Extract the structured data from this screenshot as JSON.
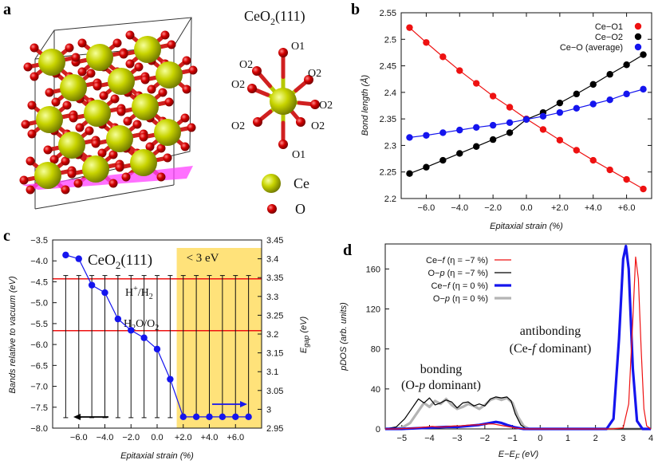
{
  "panel_labels": {
    "a": "a",
    "b": "b",
    "c": "c",
    "d": "d"
  },
  "structure": {
    "title": "CeO",
    "title_sub": "2",
    "title_paren": "(111)",
    "site_labels": {
      "o1_top": "O1",
      "o2_ul": "O2",
      "o2_l": "O2",
      "o2_r": "O2",
      "o2_rr": "O2",
      "o2_bl": "O2",
      "o2_br": "O2",
      "o1_bot": "O1"
    },
    "legend_ce": "Ce",
    "legend_o": "O",
    "colors": {
      "ce": "#c8d400",
      "o": "#d40000",
      "bond_ce": "#b6c800",
      "bond_o": "#d02020",
      "plane": "#ff40ff"
    }
  },
  "chart_data": [
    {
      "id": "b",
      "type": "line",
      "title": "",
      "xlabel": "Epitaxial strain (%)",
      "ylabel": "Bond length (Å)",
      "xlim": [
        -7.5,
        7.5
      ],
      "ylim": [
        2.2,
        2.55
      ],
      "xticks": [
        -6,
        -4,
        -2,
        0,
        2,
        4,
        6
      ],
      "xtick_labels": [
        "−6.0",
        "−4.0",
        "−2.0",
        "0.0",
        "+2.0",
        "+4.0",
        "+6.0"
      ],
      "yticks": [
        2.2,
        2.25,
        2.3,
        2.35,
        2.4,
        2.45,
        2.5,
        2.55
      ],
      "ytick_labels": [
        "2.2",
        "2.25",
        "2.3",
        "2.35",
        "2.4",
        "2.45",
        "2.5",
        "2.55"
      ],
      "x": [
        -7,
        -6,
        -5,
        -4,
        -3,
        -2,
        -1,
        0,
        1,
        2,
        3,
        4,
        5,
        6,
        7
      ],
      "series": [
        {
          "name": "Ce−O1",
          "color": "#ee1111",
          "values": [
            2.522,
            2.494,
            2.467,
            2.441,
            2.417,
            2.393,
            2.372,
            2.35,
            2.33,
            2.31,
            2.291,
            2.272,
            2.254,
            2.236,
            2.218
          ]
        },
        {
          "name": "Ce−O2",
          "color": "#000000",
          "values": [
            2.247,
            2.259,
            2.272,
            2.285,
            2.298,
            2.311,
            2.324,
            2.349,
            2.362,
            2.38,
            2.397,
            2.415,
            2.434,
            2.452,
            2.471
          ]
        },
        {
          "name": "Ce−O (average)",
          "color": "#1515ee",
          "values": [
            2.315,
            2.319,
            2.324,
            2.329,
            2.334,
            2.338,
            2.343,
            2.349,
            2.355,
            2.362,
            2.37,
            2.378,
            2.386,
            2.397,
            2.406
          ]
        }
      ],
      "legend_position": "top-right"
    },
    {
      "id": "c",
      "type": "line",
      "inset_title": "CeO",
      "inset_title_sub": "2",
      "inset_title_paren": "(111)",
      "xlabel": "Epitaxial strain (%)",
      "ylabel": "Bands relative to vacuum (eV)",
      "ylabel_right": "E",
      "ylabel_right_sub": "gap",
      "ylabel_right_unit": " (eV)",
      "xlim": [
        -8,
        8
      ],
      "ylim": [
        -8.0,
        -3.5
      ],
      "ylim_right": [
        2.95,
        3.45
      ],
      "xticks": [
        -6,
        -4,
        -2,
        0,
        2,
        4,
        6
      ],
      "xtick_labels": [
        "−6.0",
        "−4.0",
        "−2.0",
        "0.0",
        "+2.0",
        "+4.0",
        "+6.0"
      ],
      "yticks": [
        -8,
        -7.5,
        -7,
        -6.5,
        -6,
        -5.5,
        -5,
        -4.5,
        -4,
        -3.5
      ],
      "ytick_labels": [
        "−8.0",
        "−7.5",
        "−7.0",
        "−6.5",
        "−6.0",
        "−5.5",
        "−5.0",
        "−4.5",
        "−4.0",
        "−3.5"
      ],
      "yticks_right": [
        2.95,
        3.0,
        3.05,
        3.1,
        3.15,
        3.2,
        3.25,
        3.3,
        3.35,
        3.4,
        3.45
      ],
      "ytick_labels_right": [
        "2.95",
        "3",
        "3.05",
        "3.1",
        "3.15",
        "3.2",
        "3.25",
        "3.3",
        "3.35",
        "3.4",
        "3.45"
      ],
      "x": [
        -7,
        -6,
        -5,
        -4,
        -3,
        -2,
        -1,
        0,
        1,
        2,
        3,
        4,
        5,
        6,
        7
      ],
      "egap": [
        3.41,
        3.4,
        3.33,
        3.31,
        3.24,
        3.21,
        3.19,
        3.16,
        3.08,
        2.98,
        2.98,
        2.98,
        2.98,
        2.98,
        2.98
      ],
      "vbm": [
        -7.75,
        -7.75,
        -7.75,
        -7.75,
        -7.75,
        -7.75,
        -7.75,
        -7.75,
        -7.75,
        -7.75,
        -7.75,
        -7.75,
        -7.75,
        -7.75,
        -7.75
      ],
      "cbm": [
        -4.35,
        -4.35,
        -4.35,
        -4.35,
        -4.35,
        -4.35,
        -4.35,
        -4.35,
        -4.35,
        -4.35,
        -4.35,
        -4.35,
        -4.35,
        -4.35,
        -4.35
      ],
      "hlines": [
        {
          "label_main": "H",
          "label_sup": "+",
          "label_rest": "/H",
          "label_sub": "2",
          "y": -4.43
        },
        {
          "label_main": "H",
          "label_sub": "2",
          "label_rest": "O/O",
          "label_sub2": "2",
          "y": -5.67
        }
      ],
      "highlight": {
        "label": "< 3 eV",
        "x_from": 1.5,
        "x_to": 8,
        "color": "#ffe27a"
      },
      "arrows": [
        {
          "direction": "left",
          "color": "#000000",
          "axis": "left"
        },
        {
          "direction": "right",
          "color": "#1515ee",
          "axis": "right"
        }
      ],
      "series_color": "#1515ee"
    },
    {
      "id": "d",
      "type": "line",
      "xlabel": "E−E",
      "xlabel_sub": "F",
      "xlabel_unit": " (eV)",
      "ylabel": "pDOS (arb. units)",
      "xlim": [
        -5.6,
        4.0
      ],
      "ylim": [
        0,
        185
      ],
      "xticks": [
        -5,
        -4,
        -3,
        -2,
        -1,
        0,
        1,
        2,
        3,
        4
      ],
      "xtick_labels": [
        "−5",
        "−4",
        "−3",
        "−2",
        "−1",
        "0",
        "1",
        "2",
        "3",
        "4"
      ],
      "yticks": [
        0,
        40,
        80,
        120,
        160
      ],
      "ytick_labels": [
        "0",
        "40",
        "80",
        "120",
        "160"
      ],
      "series": [
        {
          "name_pre": "Ce−",
          "name_italic": "f",
          "name_post": " (η = −7 %)",
          "color": "#ee1111",
          "width": 1.2,
          "x": [
            -5.6,
            -5.2,
            -4.8,
            -4.5,
            -4.3,
            -4.1,
            -3.9,
            -3.7,
            -3.5,
            -3.3,
            -3.1,
            -2.9,
            -2.7,
            -2.5,
            -2.3,
            -2.1,
            -1.9,
            -1.7,
            -1.5,
            -1.3,
            -1.1,
            -0.9,
            -0.7,
            -0.5,
            2.6,
            3.0,
            3.2,
            3.35,
            3.45,
            3.55,
            3.65,
            3.75,
            3.85,
            4.0
          ],
          "values": [
            0,
            0,
            0.5,
            1,
            1.5,
            2,
            2.5,
            2,
            2,
            2.5,
            3,
            3,
            3.5,
            4,
            4,
            4.5,
            5,
            5,
            4,
            3,
            2,
            1,
            0.3,
            0,
            0,
            1,
            25,
            110,
            172,
            150,
            80,
            20,
            3,
            0
          ]
        },
        {
          "name_pre": "O−",
          "name_italic": "p",
          "name_post": " (η = −7 %)",
          "color": "#000000",
          "width": 1.2,
          "x": [
            -5.6,
            -5.2,
            -4.9,
            -4.6,
            -4.4,
            -4.2,
            -4.0,
            -3.8,
            -3.6,
            -3.4,
            -3.2,
            -3.0,
            -2.8,
            -2.6,
            -2.4,
            -2.2,
            -2.0,
            -1.8,
            -1.6,
            -1.4,
            -1.2,
            -1.05,
            -0.9,
            -0.7,
            -0.5,
            4.0
          ],
          "values": [
            0,
            2,
            10,
            22,
            30,
            26,
            31,
            24,
            26,
            29,
            27,
            21,
            26,
            27,
            23,
            25,
            23,
            30,
            32,
            31,
            32,
            28,
            15,
            4,
            0,
            0
          ]
        },
        {
          "name_pre": "Ce−",
          "name_italic": "f",
          "name_post": " (η = 0 %)",
          "color": "#1515ee",
          "width": 3.2,
          "x": [
            -5.6,
            -5.0,
            -4.6,
            -4.2,
            -3.8,
            -3.4,
            -3.0,
            -2.6,
            -2.2,
            -1.8,
            -1.6,
            -1.4,
            -1.2,
            -0.9,
            -0.6,
            2.4,
            2.65,
            2.85,
            3.0,
            3.1,
            3.2,
            3.35,
            3.5,
            3.7,
            4.0
          ],
          "values": [
            0,
            0,
            0.5,
            1,
            1.5,
            2,
            2,
            3,
            4,
            6,
            7,
            6,
            4,
            1.5,
            0,
            0,
            10,
            90,
            170,
            183,
            160,
            60,
            8,
            0,
            0
          ]
        },
        {
          "name_pre": "O−",
          "name_italic": "p",
          "name_post": " (η = 0 %)",
          "color": "#b4b4b4",
          "width": 3.2,
          "x": [
            -5.6,
            -5.0,
            -4.7,
            -4.4,
            -4.2,
            -4.0,
            -3.8,
            -3.6,
            -3.4,
            -3.2,
            -3.0,
            -2.8,
            -2.6,
            -2.4,
            -2.2,
            -2.0,
            -1.8,
            -1.6,
            -1.4,
            -1.2,
            -1.0,
            -0.8,
            -0.6,
            -0.4,
            4.0
          ],
          "values": [
            0,
            1,
            6,
            18,
            26,
            22,
            28,
            25,
            30,
            24,
            20,
            22,
            25,
            23,
            20,
            24,
            29,
            31,
            29,
            31,
            26,
            12,
            3,
            0,
            0
          ]
        }
      ],
      "annotations": [
        {
          "line1": "bonding",
          "line2_pre": "(O-",
          "line2_italic": "p",
          "line2_post": " dominant)"
        },
        {
          "line1": "antibonding",
          "line2_pre": "(Ce-",
          "line2_italic": "f",
          "line2_post": " dominant)"
        }
      ],
      "legend_position": "top-left"
    }
  ]
}
